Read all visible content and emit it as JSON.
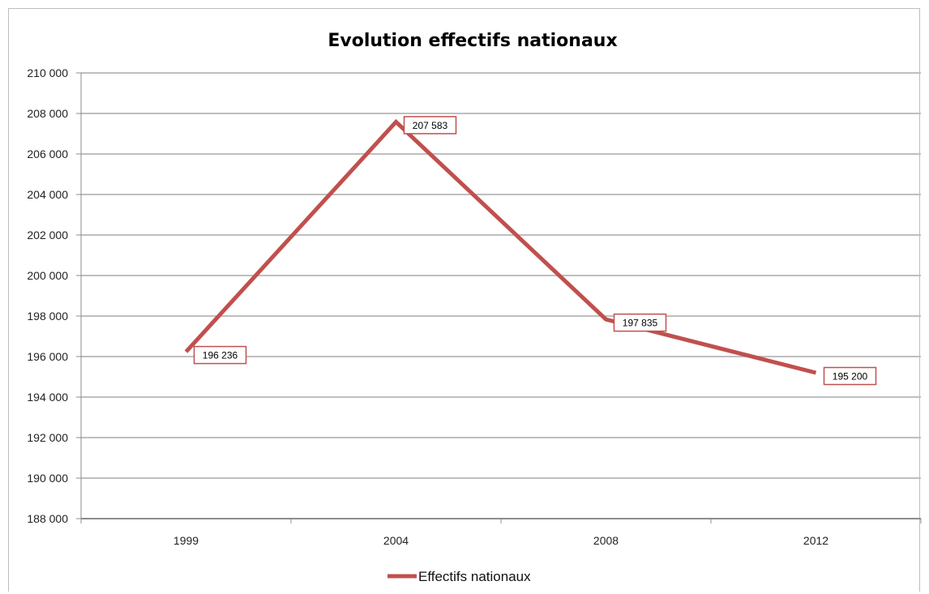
{
  "chart_data": {
    "type": "line",
    "title": "Evolution effectifs nationaux",
    "categories": [
      "1999",
      "2004",
      "2008",
      "2012"
    ],
    "series": [
      {
        "name": "Effectifs nationaux",
        "values": [
          196236,
          207583,
          197835,
          195200
        ],
        "labels": [
          "196 236",
          "207 583",
          "197 835",
          "195 200"
        ],
        "color": "#c0504d"
      }
    ],
    "ylim": [
      188000,
      210000
    ],
    "yticks": [
      188000,
      190000,
      192000,
      194000,
      196000,
      198000,
      200000,
      202000,
      204000,
      206000,
      208000,
      210000
    ],
    "ytick_labels": [
      "188 000",
      "190 000",
      "192 000",
      "194 000",
      "196 000",
      "198 000",
      "200 000",
      "202 000",
      "204 000",
      "206 000",
      "208 000",
      "210 000"
    ],
    "xlabel": "",
    "ylabel": "",
    "grid": true,
    "legend": "bottom",
    "gridline_color": "#bfbfbf",
    "label_border_color": "#c0504d"
  }
}
